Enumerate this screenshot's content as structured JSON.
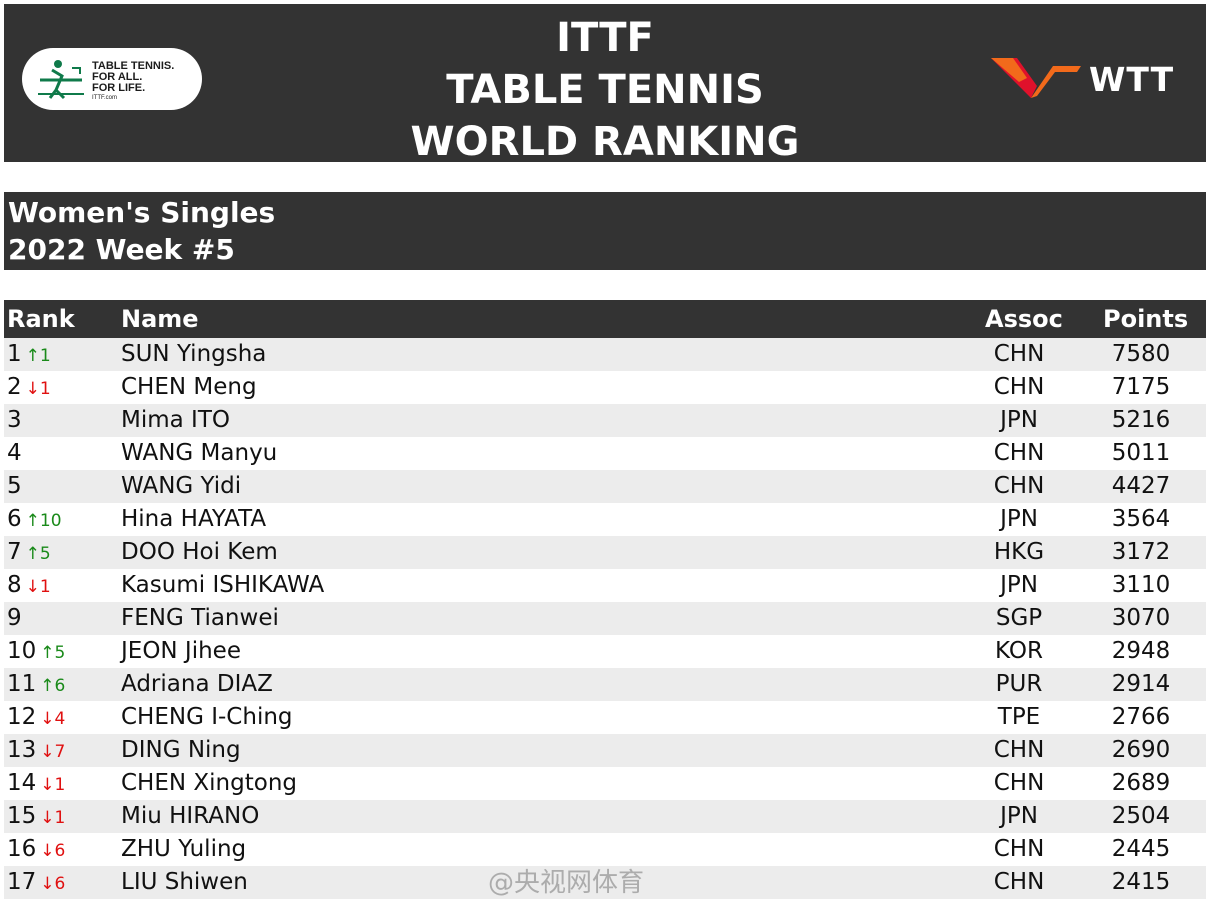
{
  "header": {
    "title_lines": [
      "ITTF",
      "TABLE TENNIS",
      "WORLD RANKING"
    ],
    "ittf_logo": {
      "slogan_lines": [
        "TABLE TENNIS.",
        "FOR ALL.",
        "FOR LIFE."
      ],
      "url": "ITTF.com",
      "mark": "ITTF"
    },
    "wtt_logo": {
      "text": "WTT"
    }
  },
  "subheader": {
    "line1": "Women's Singles",
    "line2": "2022 Week #5"
  },
  "table": {
    "headers": {
      "rank": "Rank",
      "name": "Name",
      "assoc": "Assoc",
      "points": "Points"
    },
    "rows": [
      {
        "rank": "1",
        "change": "↑1",
        "dir": "up",
        "name": "SUN Yingsha",
        "assoc": "CHN",
        "points": "7580"
      },
      {
        "rank": "2",
        "change": "↓1",
        "dir": "down",
        "name": "CHEN Meng",
        "assoc": "CHN",
        "points": "7175"
      },
      {
        "rank": "3",
        "change": "",
        "dir": "",
        "name": "Mima ITO",
        "assoc": "JPN",
        "points": "5216"
      },
      {
        "rank": "4",
        "change": "",
        "dir": "",
        "name": "WANG Manyu",
        "assoc": "CHN",
        "points": "5011"
      },
      {
        "rank": "5",
        "change": "",
        "dir": "",
        "name": "WANG Yidi",
        "assoc": "CHN",
        "points": "4427"
      },
      {
        "rank": "6",
        "change": "↑10",
        "dir": "up",
        "name": "Hina HAYATA",
        "assoc": "JPN",
        "points": "3564"
      },
      {
        "rank": "7",
        "change": "↑5",
        "dir": "up",
        "name": "DOO Hoi Kem",
        "assoc": "HKG",
        "points": "3172"
      },
      {
        "rank": "8",
        "change": "↓1",
        "dir": "down",
        "name": "Kasumi ISHIKAWA",
        "assoc": "JPN",
        "points": "3110"
      },
      {
        "rank": "9",
        "change": "",
        "dir": "",
        "name": "FENG Tianwei",
        "assoc": "SGP",
        "points": "3070"
      },
      {
        "rank": "10",
        "change": "↑5",
        "dir": "up",
        "name": "JEON Jihee",
        "assoc": "KOR",
        "points": "2948"
      },
      {
        "rank": "11",
        "change": "↑6",
        "dir": "up",
        "name": "Adriana DIAZ",
        "assoc": "PUR",
        "points": "2914"
      },
      {
        "rank": "12",
        "change": "↓4",
        "dir": "down",
        "name": "CHENG I-Ching",
        "assoc": "TPE",
        "points": "2766"
      },
      {
        "rank": "13",
        "change": "↓7",
        "dir": "down",
        "name": "DING Ning",
        "assoc": "CHN",
        "points": "2690"
      },
      {
        "rank": "14",
        "change": "↓1",
        "dir": "down",
        "name": "CHEN Xingtong",
        "assoc": "CHN",
        "points": "2689"
      },
      {
        "rank": "15",
        "change": "↓1",
        "dir": "down",
        "name": "Miu HIRANO",
        "assoc": "JPN",
        "points": "2504"
      },
      {
        "rank": "16",
        "change": "↓6",
        "dir": "down",
        "name": "ZHU Yuling",
        "assoc": "CHN",
        "points": "2445"
      },
      {
        "rank": "17",
        "change": "↓6",
        "dir": "down",
        "name": "LIU Shiwen",
        "assoc": "CHN",
        "points": "2415"
      }
    ]
  },
  "watermark": {
    "text": "@央视网体育"
  },
  "colors": {
    "header_bg": "#333333",
    "row_alt": "#ececec",
    "up": "#1a8a1a",
    "down": "#e01010",
    "ittf_green": "#0f7a4a",
    "wtt_orange": "#f26a1b",
    "wtt_red": "#e0112b"
  }
}
